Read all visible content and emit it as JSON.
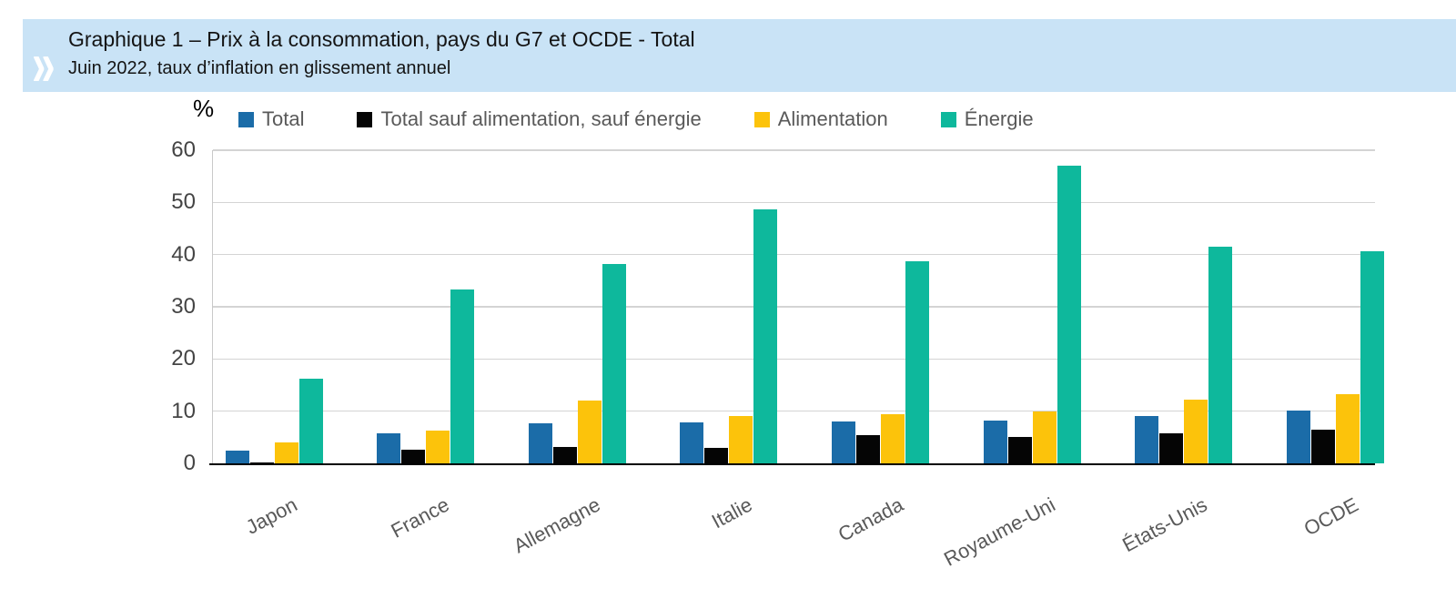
{
  "header": {
    "chevron_icon": "»",
    "band_color": "#c9e3f6",
    "title": "Graphique 1 – Prix à la consommation, pays du G7 et OCDE - Total",
    "subtitle": "Juin 2022, taux d’inflation en glissement annuel"
  },
  "chart_data": {
    "type": "bar",
    "unit_label": "%",
    "categories": [
      "Japon",
      "France",
      "Allemagne",
      "Italie",
      "Canada",
      "Royaume-Uni",
      "États-Unis",
      "OCDE"
    ],
    "series": [
      {
        "name": "Total",
        "color": "#1b6ca8",
        "values": [
          2.4,
          5.8,
          7.6,
          7.9,
          8.1,
          8.2,
          9.0,
          10.2
        ]
      },
      {
        "name": "Total sauf alimentation, sauf énergie",
        "color": "#050505",
        "values": [
          0.2,
          2.7,
          3.2,
          2.9,
          5.4,
          5.1,
          5.8,
          6.5
        ]
      },
      {
        "name": "Alimentation",
        "color": "#fcc30b",
        "values": [
          4.0,
          6.3,
          12.0,
          9.1,
          9.4,
          9.9,
          12.2,
          13.2
        ]
      },
      {
        "name": "Énergie",
        "color": "#0eb89c",
        "values": [
          16.3,
          33.4,
          38.2,
          48.7,
          38.8,
          57.1,
          41.6,
          40.6
        ]
      }
    ],
    "ylim": [
      0,
      60
    ],
    "yticks": [
      0,
      10,
      20,
      30,
      40,
      50,
      60
    ],
    "grid": true,
    "legend_position": "top"
  }
}
